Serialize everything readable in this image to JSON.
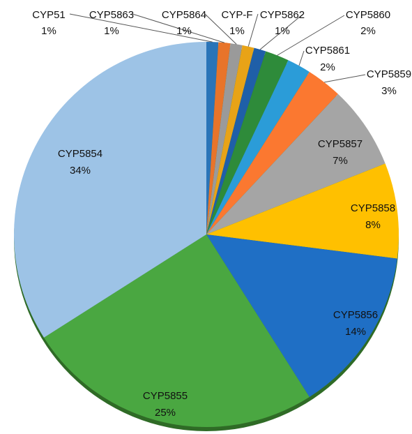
{
  "chart_data": {
    "type": "pie",
    "categories": [
      "CYP51",
      "CYP5863",
      "CYP5864",
      "CYP-F",
      "CYP5862",
      "CYP5860",
      "CYP5861",
      "CYP5859",
      "CYP5857",
      "CYP5858",
      "CYP5856",
      "CYP5855",
      "CYP5854"
    ],
    "values": [
      1,
      1,
      1,
      1,
      1,
      2,
      2,
      3,
      7,
      8,
      14,
      25,
      34
    ],
    "value_labels": [
      "1%",
      "1%",
      "1%",
      "1%",
      "1%",
      "2%",
      "2%",
      "3%",
      "7%",
      "8%",
      "14%",
      "25%",
      "34%"
    ],
    "colors": [
      "#2a74b8",
      "#e8742a",
      "#9a9a9a",
      "#e8a317",
      "#1f5fa8",
      "#2e8b3a",
      "#2b9cd8",
      "#fb7830",
      "#a5a5a5",
      "#ffc000",
      "#1f6fc5",
      "#4aa741",
      "#9dc3e6"
    ]
  }
}
